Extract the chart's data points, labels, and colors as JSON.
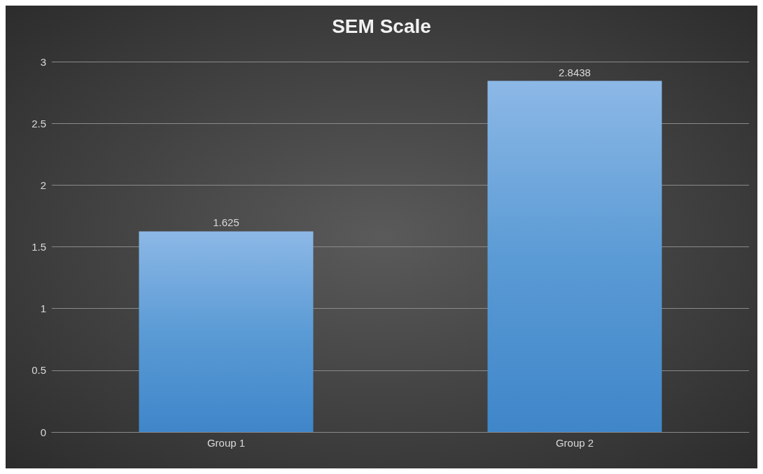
{
  "chart_data": {
    "type": "bar",
    "title": "SEM Scale",
    "categories": [
      "Group 1",
      "Group 2"
    ],
    "values": [
      1.625,
      2.8438
    ],
    "color": "#5b9bd5",
    "data_labels": true,
    "ylim": [
      0,
      3
    ],
    "yticks": [
      0,
      0.5,
      1,
      1.5,
      2,
      2.5,
      3
    ],
    "grid": "y"
  }
}
